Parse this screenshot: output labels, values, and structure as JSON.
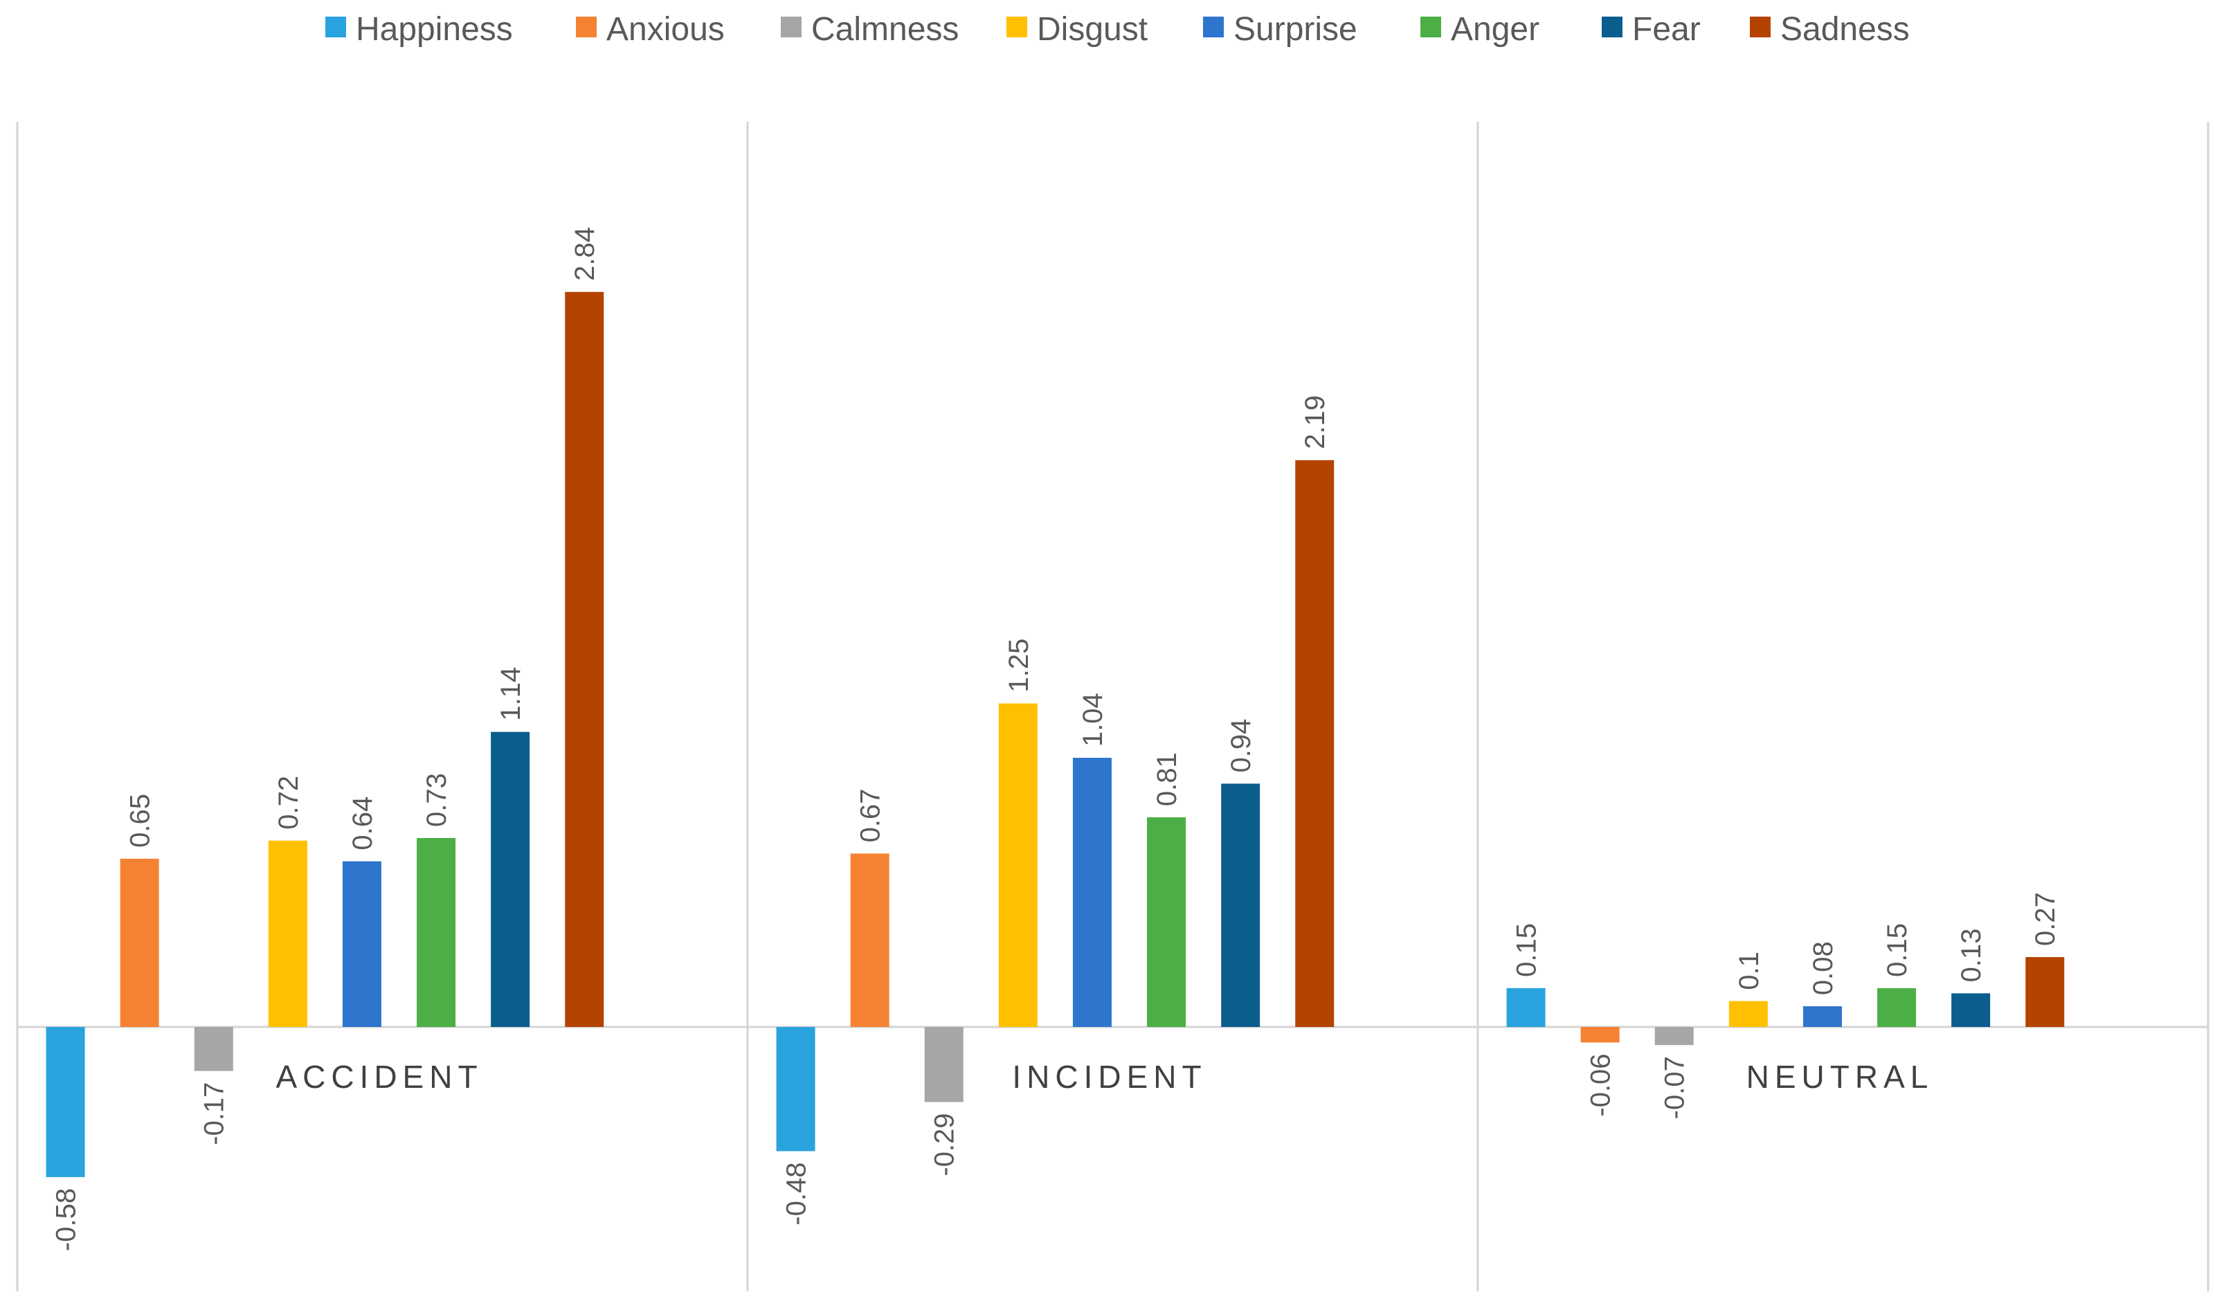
{
  "chart_data": {
    "type": "bar",
    "title": "",
    "xlabel": "",
    "ylabel": "",
    "ylim": [
      -0.7,
      3.4
    ],
    "grid": false,
    "legend_position": "top",
    "categories": [
      "ACCIDENT",
      "INCIDENT",
      "NEUTRAL"
    ],
    "series": [
      {
        "name": "Happiness",
        "color": "#29A3DE",
        "values": [
          -0.58,
          -0.48,
          0.15
        ],
        "labels": [
          "-0.58",
          "-0.48",
          "0.15"
        ]
      },
      {
        "name": "Anxious",
        "color": "#F58233",
        "values": [
          0.65,
          0.67,
          -0.06
        ],
        "labels": [
          "0.65",
          "0.67",
          "-0.06"
        ]
      },
      {
        "name": "Calmness",
        "color": "#A6A6A6",
        "values": [
          -0.17,
          -0.29,
          -0.07
        ],
        "labels": [
          "-0.17",
          "-0.29",
          "-0.07"
        ]
      },
      {
        "name": "Disgust",
        "color": "#FFC000",
        "values": [
          0.72,
          1.25,
          0.1
        ],
        "labels": [
          "0.72",
          "1.25",
          "0.1"
        ]
      },
      {
        "name": "Surprise",
        "color": "#2E75CE",
        "values": [
          0.64,
          1.04,
          0.08
        ],
        "labels": [
          "0.64",
          "1.04",
          "0.08"
        ]
      },
      {
        "name": "Anger",
        "color": "#4CAF45",
        "values": [
          0.73,
          0.81,
          0.15
        ],
        "labels": [
          "0.73",
          "0.81",
          "0.15"
        ]
      },
      {
        "name": "Fear",
        "color": "#0B5D8E",
        "values": [
          1.14,
          0.94,
          0.13
        ],
        "labels": [
          "1.14",
          "0.94",
          "0.13"
        ]
      },
      {
        "name": "Sadness",
        "color": "#B54300",
        "values": [
          2.84,
          2.19,
          0.27
        ],
        "labels": [
          "2.84",
          "2.19",
          "0.27"
        ]
      }
    ]
  }
}
